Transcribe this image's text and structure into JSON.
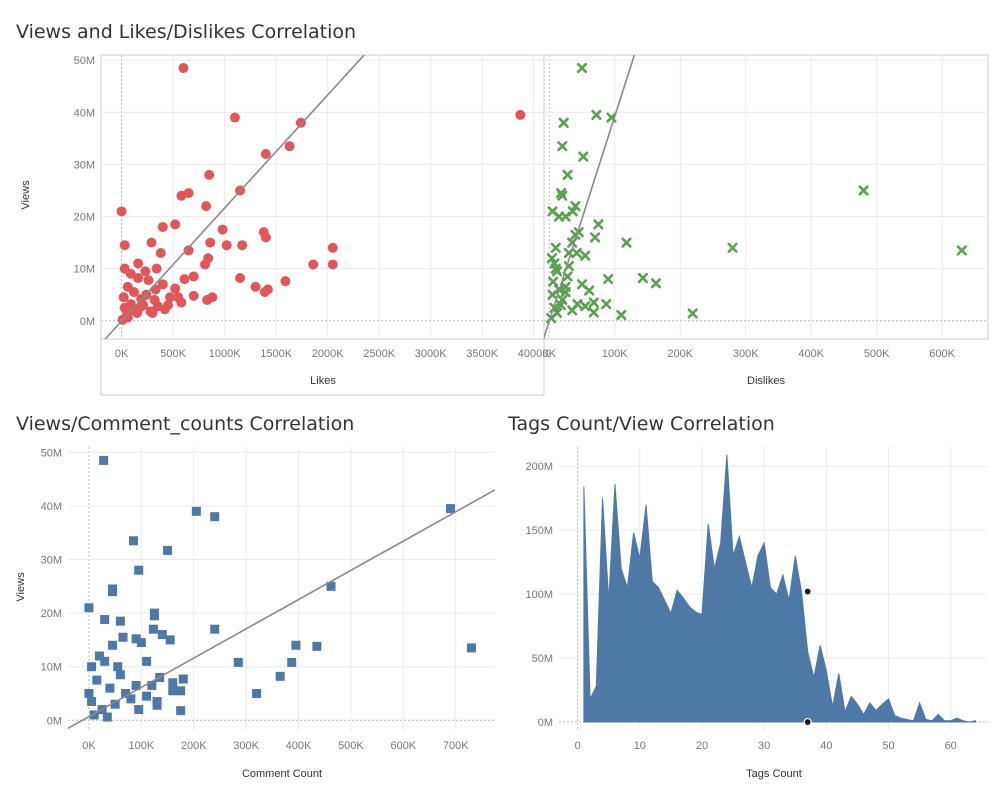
{
  "dashboard": {
    "titles": {
      "top": "Views and Likes/Dislikes Correlation",
      "bottom_left": "Views/Comment_counts Correlation",
      "bottom_right": "Tags Count/View Correlation"
    }
  },
  "colors": {
    "likes": "#e15759",
    "dislikes": "#59a14f",
    "comments": "#4e79a7",
    "tags_area": "#4e79a7",
    "trend": "#8a8a8a"
  },
  "chart_data": [
    {
      "id": "likes",
      "type": "scatter",
      "marker": "circle",
      "xlabel": "Likes",
      "ylabel": "Views",
      "xlim": [
        -200000,
        4100000
      ],
      "ylim": [
        -3500000,
        51000000
      ],
      "x_ticks": [
        0,
        500000,
        1000000,
        1500000,
        2000000,
        2500000,
        3000000,
        3500000,
        4000000
      ],
      "x_tick_labels": [
        "0K",
        "500K",
        "1000K",
        "1500K",
        "2000K",
        "2500K",
        "3000K",
        "3500K",
        "4000K"
      ],
      "y_ticks": [
        0,
        10000000,
        20000000,
        30000000,
        40000000,
        50000000
      ],
      "y_tick_labels": [
        "0M",
        "10M",
        "20M",
        "30M",
        "40M",
        "50M"
      ],
      "trend_line": {
        "x0": -200000,
        "y0": -4400000,
        "x1": 2400000,
        "y1": 52000000
      },
      "points": [
        [
          600000,
          48500000
        ],
        [
          3870000,
          39500000
        ],
        [
          1100000,
          39000000
        ],
        [
          1740000,
          38000000
        ],
        [
          1400000,
          32000000
        ],
        [
          1630000,
          33500000
        ],
        [
          850000,
          28000000
        ],
        [
          1150000,
          25000000
        ],
        [
          580000,
          24000000
        ],
        [
          650000,
          24500000
        ],
        [
          0,
          21000000
        ],
        [
          820000,
          22000000
        ],
        [
          520000,
          18500000
        ],
        [
          400000,
          18000000
        ],
        [
          980000,
          17500000
        ],
        [
          1380000,
          17000000
        ],
        [
          1400000,
          16000000
        ],
        [
          860000,
          15000000
        ],
        [
          1170000,
          14500000
        ],
        [
          30000,
          14500000
        ],
        [
          290000,
          15000000
        ],
        [
          2050000,
          14000000
        ],
        [
          1020000,
          14500000
        ],
        [
          380000,
          13000000
        ],
        [
          650000,
          13500000
        ],
        [
          840000,
          12000000
        ],
        [
          1860000,
          10800000
        ],
        [
          2050000,
          10800000
        ],
        [
          810000,
          10800000
        ],
        [
          30000,
          10000000
        ],
        [
          160000,
          11000000
        ],
        [
          700000,
          8500000
        ],
        [
          1150000,
          8200000
        ],
        [
          1590000,
          7600000
        ],
        [
          610000,
          8000000
        ],
        [
          1300000,
          6500000
        ],
        [
          1420000,
          6000000
        ],
        [
          1390000,
          5500000
        ],
        [
          880000,
          4500000
        ],
        [
          830000,
          4000000
        ],
        [
          550000,
          4500000
        ],
        [
          700000,
          4800000
        ],
        [
          320000,
          4000000
        ],
        [
          470000,
          4500000
        ],
        [
          580000,
          3500000
        ],
        [
          110000,
          2000000
        ],
        [
          210000,
          3000000
        ],
        [
          350000,
          2800000
        ],
        [
          450000,
          3000000
        ],
        [
          240000,
          5000000
        ],
        [
          60000,
          6500000
        ],
        [
          160000,
          8200000
        ],
        [
          260000,
          7800000
        ],
        [
          190000,
          4200000
        ],
        [
          90000,
          3200000
        ],
        [
          330000,
          6000000
        ],
        [
          50000,
          1000000
        ],
        [
          150000,
          1500000
        ],
        [
          280000,
          1800000
        ],
        [
          20000,
          4500000
        ],
        [
          120000,
          5500000
        ],
        [
          400000,
          7000000
        ],
        [
          520000,
          6200000
        ],
        [
          30000,
          2500000
        ],
        [
          90000,
          9000000
        ],
        [
          230000,
          9500000
        ],
        [
          340000,
          10000000
        ],
        [
          10000,
          200000
        ],
        [
          60000,
          600000
        ],
        [
          180000,
          2600000
        ],
        [
          300000,
          1500000
        ],
        [
          420000,
          2200000
        ]
      ]
    },
    {
      "id": "dislikes",
      "type": "scatter",
      "marker": "x",
      "xlabel": "Dislikes",
      "ylabel": "",
      "xlim": [
        -8000,
        670000
      ],
      "ylim": [
        -3500000,
        51000000
      ],
      "x_ticks": [
        0,
        100000,
        200000,
        300000,
        400000,
        500000,
        600000
      ],
      "x_tick_labels": [
        "0K",
        "100K",
        "200K",
        "300K",
        "400K",
        "500K",
        "600K"
      ],
      "trend_line": {
        "x0": -10000,
        "y0": -4000000,
        "x1": 130000,
        "y1": 51000000
      },
      "points": [
        [
          50000,
          48500000
        ],
        [
          95000,
          39000000
        ],
        [
          72000,
          39500000
        ],
        [
          22000,
          38000000
        ],
        [
          20000,
          33500000
        ],
        [
          52000,
          31500000
        ],
        [
          28000,
          28000000
        ],
        [
          18000,
          24500000
        ],
        [
          20000,
          24000000
        ],
        [
          480000,
          25000000
        ],
        [
          40000,
          22000000
        ],
        [
          5000,
          21000000
        ],
        [
          36000,
          21000000
        ],
        [
          25000,
          20000000
        ],
        [
          15000,
          20000000
        ],
        [
          75000,
          18500000
        ],
        [
          45000,
          17000000
        ],
        [
          35000,
          15000000
        ],
        [
          118000,
          15000000
        ],
        [
          70000,
          16000000
        ],
        [
          40000,
          16500000
        ],
        [
          10000,
          14000000
        ],
        [
          30000,
          13000000
        ],
        [
          280000,
          14000000
        ],
        [
          630000,
          13500000
        ],
        [
          42000,
          13000000
        ],
        [
          55000,
          12500000
        ],
        [
          8000,
          11000000
        ],
        [
          143000,
          8200000
        ],
        [
          163000,
          7200000
        ],
        [
          90000,
          8000000
        ],
        [
          50000,
          7000000
        ],
        [
          25000,
          6500000
        ],
        [
          61000,
          5800000
        ],
        [
          87000,
          3200000
        ],
        [
          68000,
          3500000
        ],
        [
          55000,
          2800000
        ],
        [
          43000,
          3200000
        ],
        [
          68000,
          1600000
        ],
        [
          110000,
          1100000
        ],
        [
          219000,
          1400000
        ],
        [
          35000,
          2000000
        ],
        [
          20000,
          4000000
        ],
        [
          15000,
          6000000
        ],
        [
          28000,
          8500000
        ],
        [
          12000,
          9500000
        ],
        [
          5000,
          5000000
        ],
        [
          8000,
          2500000
        ],
        [
          3000,
          500000
        ],
        [
          12000,
          1500000
        ],
        [
          18000,
          3000000
        ],
        [
          25000,
          5500000
        ],
        [
          6000,
          7500000
        ],
        [
          10000,
          10000000
        ],
        [
          4000,
          12000000
        ],
        [
          30000,
          10500000
        ]
      ]
    },
    {
      "id": "comments",
      "type": "scatter",
      "marker": "square",
      "xlabel": "Comment Count",
      "ylabel": "Views",
      "xlim": [
        -40000,
        775000
      ],
      "ylim": [
        -2000000,
        51000000
      ],
      "x_ticks": [
        0,
        100000,
        200000,
        300000,
        400000,
        500000,
        600000,
        700000
      ],
      "x_tick_labels": [
        "0K",
        "100K",
        "200K",
        "300K",
        "400K",
        "500K",
        "600K",
        "700K"
      ],
      "y_ticks": [
        0,
        10000000,
        20000000,
        30000000,
        40000000,
        50000000
      ],
      "y_tick_labels": [
        "0M",
        "10M",
        "20M",
        "30M",
        "40M",
        "50M"
      ],
      "trend_line": {
        "x0": -40000,
        "y0": -1500000,
        "x1": 775000,
        "y1": 43000000
      },
      "points": [
        [
          28000,
          48500000
        ],
        [
          690000,
          39500000
        ],
        [
          205000,
          39000000
        ],
        [
          240000,
          38000000
        ],
        [
          85000,
          33500000
        ],
        [
          150000,
          31700000
        ],
        [
          95000,
          28000000
        ],
        [
          462000,
          25000000
        ],
        [
          45000,
          24500000
        ],
        [
          45000,
          24000000
        ],
        [
          0,
          21000000
        ],
        [
          30000,
          18800000
        ],
        [
          60000,
          18500000
        ],
        [
          125000,
          20000000
        ],
        [
          125000,
          19500000
        ],
        [
          123000,
          17000000
        ],
        [
          240000,
          17000000
        ],
        [
          65000,
          15500000
        ],
        [
          90000,
          15200000
        ],
        [
          140000,
          16000000
        ],
        [
          155000,
          15000000
        ],
        [
          100000,
          14500000
        ],
        [
          45000,
          14000000
        ],
        [
          395000,
          14000000
        ],
        [
          435000,
          13800000
        ],
        [
          730000,
          13500000
        ],
        [
          20000,
          12000000
        ],
        [
          30000,
          11000000
        ],
        [
          110000,
          11000000
        ],
        [
          285000,
          10800000
        ],
        [
          387000,
          10800000
        ],
        [
          5000,
          10000000
        ],
        [
          55000,
          10000000
        ],
        [
          365000,
          8200000
        ],
        [
          135000,
          8000000
        ],
        [
          180000,
          7700000
        ],
        [
          160000,
          7000000
        ],
        [
          120000,
          6500000
        ],
        [
          320000,
          5000000
        ],
        [
          160000,
          5500000
        ],
        [
          175000,
          5500000
        ],
        [
          110000,
          4500000
        ],
        [
          130000,
          3500000
        ],
        [
          80000,
          4000000
        ],
        [
          50000,
          3000000
        ],
        [
          25000,
          2000000
        ],
        [
          175000,
          1800000
        ],
        [
          130000,
          2800000
        ],
        [
          10000,
          1000000
        ],
        [
          40000,
          6000000
        ],
        [
          70000,
          5000000
        ],
        [
          15000,
          7500000
        ],
        [
          90000,
          6500000
        ],
        [
          60000,
          8500000
        ],
        [
          5000,
          3500000
        ],
        [
          95000,
          2000000
        ],
        [
          35000,
          600000
        ],
        [
          0,
          5000000
        ]
      ]
    },
    {
      "id": "tags",
      "type": "area",
      "xlabel": "Tags Count",
      "ylabel": "",
      "xlim": [
        -3,
        66
      ],
      "ylim": [
        -7000000,
        215000000
      ],
      "x_ticks": [
        0,
        10,
        20,
        30,
        40,
        50,
        60
      ],
      "x_tick_labels": [
        "0",
        "10",
        "20",
        "30",
        "40",
        "50",
        "60"
      ],
      "y_ticks": [
        0,
        50000000,
        100000000,
        150000000,
        200000000
      ],
      "y_tick_labels": [
        "0M",
        "50M",
        "100M",
        "150M",
        "200M"
      ],
      "x": [
        1,
        2,
        3,
        4,
        5,
        6,
        7,
        8,
        9,
        10,
        11,
        12,
        13,
        14,
        15,
        16,
        17,
        18,
        19,
        20,
        21,
        22,
        23,
        24,
        25,
        26,
        27,
        28,
        29,
        30,
        31,
        32,
        33,
        34,
        35,
        36,
        37,
        38,
        39,
        40,
        41,
        42,
        43,
        44,
        45,
        46,
        47,
        48,
        49,
        50,
        51,
        52,
        53,
        54,
        55,
        56,
        57,
        58,
        59,
        60,
        61,
        62,
        63,
        64
      ],
      "values": [
        184000000,
        18000000,
        28000000,
        175000000,
        95000000,
        186000000,
        120000000,
        105000000,
        148000000,
        128000000,
        170000000,
        110000000,
        105000000,
        95000000,
        85000000,
        103000000,
        97000000,
        90000000,
        86000000,
        84000000,
        155000000,
        120000000,
        140000000,
        209000000,
        130000000,
        145000000,
        125000000,
        105000000,
        130000000,
        140000000,
        105000000,
        100000000,
        115000000,
        95000000,
        130000000,
        102000000,
        55000000,
        35000000,
        60000000,
        40000000,
        12000000,
        38000000,
        8000000,
        20000000,
        14000000,
        6000000,
        15000000,
        9000000,
        14000000,
        18000000,
        5000000,
        3000000,
        2000000,
        1000000,
        15000000,
        2000000,
        1000000,
        6000000,
        1000000,
        1000000,
        3000000,
        1000000,
        0,
        1000000
      ],
      "highlight": [
        [
          37,
          102000000
        ],
        [
          37,
          0
        ]
      ]
    }
  ]
}
